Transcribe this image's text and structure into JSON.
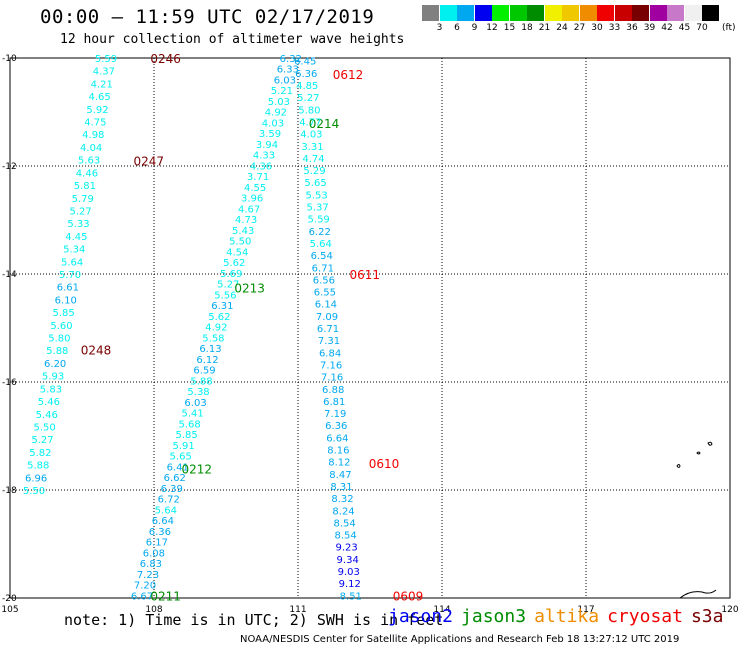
{
  "header": {
    "title": "00:00 – 11:59 UTC 02/17/2019",
    "subtitle": "12 hour collection of altimeter wave heights"
  },
  "colorbar": {
    "colors": [
      "#808080",
      "#00f0f0",
      "#00a8f0",
      "#0000f0",
      "#00f000",
      "#00c800",
      "#008c00",
      "#f0f000",
      "#f0c800",
      "#f08c00",
      "#f00000",
      "#c80000",
      "#780000",
      "#a000a0",
      "#c878c8",
      "#f0f0f0",
      "#000000"
    ],
    "labels": [
      "3",
      "6",
      "9",
      "12",
      "15",
      "18",
      "21",
      "24",
      "27",
      "30",
      "33",
      "36",
      "39",
      "42",
      "45",
      "70"
    ],
    "units": "(ft)"
  },
  "chart_data": {
    "type": "scatter",
    "title": "12 hour collection of altimeter wave heights",
    "xlabel": "",
    "ylabel": "",
    "xlim": [
      105,
      120
    ],
    "ylim": [
      -20,
      -10
    ],
    "x_ticks": [
      "105",
      "108",
      "111",
      "114",
      "117",
      "120"
    ],
    "y_ticks": [
      "-10",
      "-12",
      "-14",
      "-16",
      "-18",
      "-20"
    ],
    "grid": true,
    "legend_placement": "bottom",
    "tracks": [
      {
        "time": "0246",
        "time_lon": 107.95,
        "time_lat": -10.0,
        "label_color": "#780000",
        "start_lon": 107.0,
        "start_lat": -10.0,
        "end_lon": 105.5,
        "end_lat": -18.0,
        "values": [
          5.59,
          4.37,
          4.21,
          4.65,
          5.92,
          4.75,
          4.98,
          4.04,
          5.63,
          4.46,
          5.81,
          5.79,
          5.27,
          5.33,
          4.45,
          5.34,
          5.64,
          5.7,
          6.61,
          6.1,
          5.85,
          5.6,
          5.8,
          5.88,
          6.2,
          5.93,
          5.83,
          5.46,
          5.46,
          5.5,
          5.27,
          5.82,
          5.88,
          6.96,
          5.5
        ]
      },
      {
        "time": "0247",
        "time_lon": 107.6,
        "time_lat": -11.9,
        "label_color": "#780000"
      },
      {
        "time": "0248",
        "time_lon": 106.5,
        "time_lat": -15.4,
        "label_color": "#780000"
      },
      {
        "time": "0213",
        "time_lon": 109.7,
        "time_lat": -14.25,
        "label_color": "#008c00",
        "start_lon": 110.85,
        "start_lat": -10.0,
        "end_lon": 107.75,
        "end_lat": -19.95,
        "values": [
          6.32,
          6.33,
          6.03,
          5.21,
          5.03,
          4.92,
          4.03,
          3.59,
          3.94,
          4.33,
          4.36,
          3.71,
          4.55,
          3.96,
          4.67,
          4.73,
          5.43,
          5.5,
          4.54,
          5.62,
          5.69,
          5.27,
          5.56,
          6.31,
          5.62,
          4.92,
          5.58,
          6.13,
          6.12,
          6.59,
          5.88,
          5.38,
          6.03,
          5.41,
          5.68,
          5.85,
          5.91,
          5.65,
          6.41,
          6.62,
          6.39,
          6.72,
          5.64,
          6.64,
          6.36,
          6.17,
          6.08,
          6.83,
          7.23,
          7.2,
          6.67
        ]
      },
      {
        "time": "0214",
        "time_lon": 111.25,
        "time_lat": -11.2,
        "label_color": "#008c00"
      },
      {
        "time": "0212",
        "time_lon": 108.6,
        "time_lat": -17.6,
        "label_color": "#008c00"
      },
      {
        "time": "0211",
        "time_lon": 107.95,
        "time_lat": -19.95,
        "label_color": "#008c00"
      },
      {
        "time": "0612",
        "time_lon": 111.75,
        "time_lat": -10.3,
        "label_color": "#f00000",
        "start_lon": 111.15,
        "start_lat": -10.05,
        "end_lon": 112.1,
        "end_lat": -19.95,
        "values": [
          6.45,
          6.36,
          4.85,
          5.27,
          5.8,
          4.77,
          4.03,
          3.31,
          4.74,
          5.29,
          5.65,
          5.53,
          5.37,
          5.59,
          6.22,
          5.64,
          6.54,
          6.71,
          6.56,
          6.55,
          6.14,
          7.09,
          6.71,
          7.31,
          6.84,
          7.16,
          7.16,
          6.88,
          6.81,
          7.19,
          6.36,
          6.64,
          8.16,
          8.12,
          8.47,
          8.31,
          8.32,
          8.24,
          8.54,
          8.54,
          9.23,
          9.34,
          9.03,
          9.12,
          8.51
        ]
      },
      {
        "time": "0611",
        "time_lon": 112.1,
        "time_lat": -14.0,
        "label_color": "#f00000"
      },
      {
        "time": "0610",
        "time_lon": 112.5,
        "time_lat": -17.5,
        "label_color": "#f00000"
      },
      {
        "time": "0609",
        "time_lon": 113.0,
        "time_lat": -19.95,
        "label_color": "#f00000"
      }
    ]
  },
  "footer": {
    "note": "note: 1) Time is in UTC; 2) SWH is in feet",
    "satellites": [
      {
        "name": "jason2",
        "color": "#0000f0"
      },
      {
        "name": "jason3",
        "color": "#008c00"
      },
      {
        "name": "altika",
        "color": "#f08c00"
      },
      {
        "name": "cryosat",
        "color": "#f00000"
      },
      {
        "name": "s3a",
        "color": "#780000"
      }
    ],
    "credit": "NOAA/NESDIS Center for Satellite Applications and Research     Feb 18 13:27:12 UTC 2019"
  }
}
